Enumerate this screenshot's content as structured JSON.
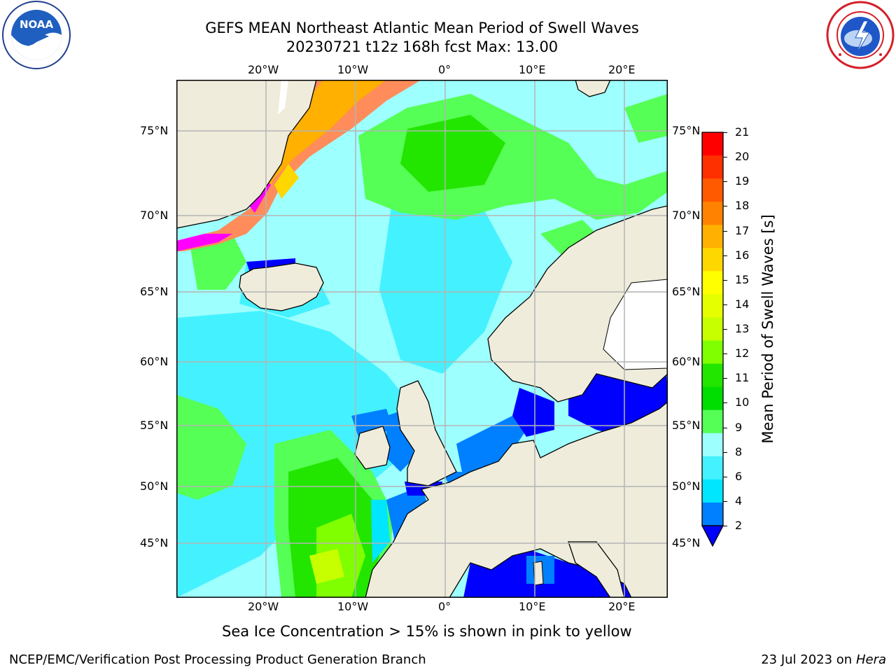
{
  "header": {
    "title_line1": "GEFS MEAN Northeast Atlantic Mean Period of Swell Waves",
    "title_line2": "20230721 t12z 168h fcst   Max: 13.00"
  },
  "logos": {
    "left": {
      "name": "noaa-logo-icon",
      "text": "NOAA",
      "ring": "NATIONAL OCEANIC AND ATMOSPHERIC ADMINISTRATION · U.S. DEPARTMENT OF COMMERCE"
    },
    "right": {
      "name": "nws-logo-icon",
      "ring": "NATIONAL WEATHER SERVICE"
    }
  },
  "map": {
    "lon_ticks_top": [
      "20°W",
      "10°W",
      "0°",
      "10°E",
      "20°E"
    ],
    "lon_ticks_bottom": [
      "20°W",
      "10°W",
      "0°",
      "10°E",
      "20°E"
    ],
    "lat_ticks_left": [
      "75°N",
      "70°N",
      "65°N",
      "60°N",
      "55°N",
      "50°N",
      "45°N"
    ],
    "lat_ticks_right": [
      "75°N",
      "70°N",
      "65°N",
      "60°N",
      "55°N",
      "50°N",
      "45°N"
    ],
    "colors": {
      "land": "#efecdc",
      "ocean_base": "#9effff",
      "grid": "#b4b4b4"
    }
  },
  "colorbar": {
    "label": "Mean Period of Swell Waves [s]",
    "ticks": [
      "21",
      "20",
      "19",
      "18",
      "17",
      "16",
      "15",
      "14",
      "13",
      "12",
      "11",
      "10",
      "9",
      "8",
      "6",
      "4",
      "2"
    ],
    "colors": [
      "#ff0000",
      "#ff3000",
      "#ff5a00",
      "#ff8200",
      "#ffb000",
      "#ffd700",
      "#ffff00",
      "#e6ff00",
      "#c8ff00",
      "#7fff00",
      "#22e600",
      "#00dd00",
      "#55ff55",
      "#9effff",
      "#44f2ff",
      "#00e6ff",
      "#0080ff",
      "#0000ff"
    ]
  },
  "note": "Sea Ice Concentration > 15% is shown in pink to yellow",
  "footer": {
    "left": "NCEP/EMC/Verification Post Processing Product Generation Branch",
    "right_prefix": "23 Jul 2023 on ",
    "right_host": "Hera"
  }
}
